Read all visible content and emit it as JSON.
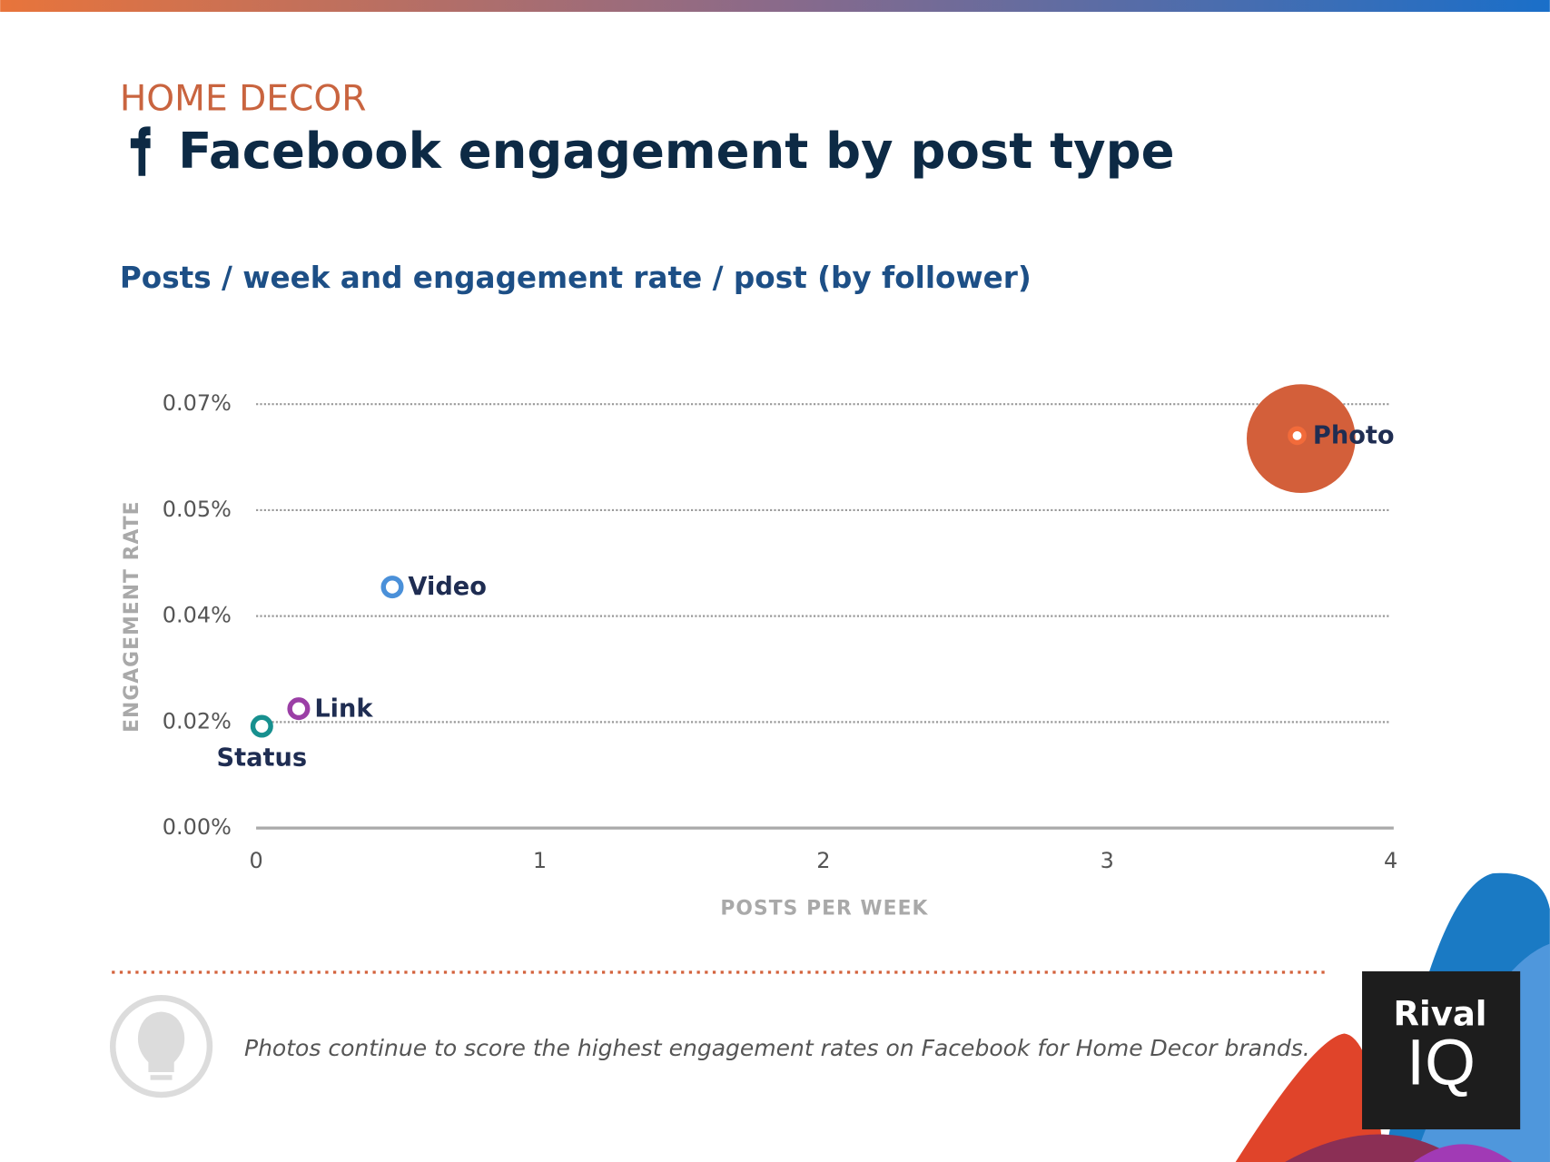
{
  "header": {
    "category": "HOME DECOR",
    "title": "Facebook engagement by post type"
  },
  "chart_data": {
    "type": "scatter",
    "subtitle": "Posts / week and engagement rate / post (by follower)",
    "x_label": "POSTS PER WEEK",
    "y_label": "ENGAGEMENT RATE",
    "xlim": [
      0,
      4
    ],
    "xticks": [
      0,
      1,
      2,
      3,
      4
    ],
    "ylim": [
      0,
      0.07
    ],
    "yticks": [
      {
        "value": 0,
        "label": "0.00%"
      },
      {
        "value": 0.0175,
        "label": "0.02%"
      },
      {
        "value": 0.035,
        "label": "0.04%"
      },
      {
        "value": 0.0525,
        "label": "0.05%"
      },
      {
        "value": 0.07,
        "label": "0.07%"
      }
    ],
    "grid": true,
    "highlight": "Photo",
    "highlight_color": "#d35f3a",
    "series": [
      {
        "name": "Photo",
        "color": "#f26b3a",
        "x": [
          3.67
        ],
        "values": [
          0.0648
        ]
      },
      {
        "name": "Video",
        "color": "#4a90d9",
        "x": [
          0.48
        ],
        "values": [
          0.0398
        ]
      },
      {
        "name": "Link",
        "color": "#9b3fa6",
        "x": [
          0.15
        ],
        "values": [
          0.0197
        ]
      },
      {
        "name": "Status",
        "color": "#17908f",
        "x": [
          0.02
        ],
        "values": [
          0.0168
        ]
      }
    ]
  },
  "footer": {
    "note": "Photos continue to score the highest engagement rates on Facebook for Home Decor brands.",
    "logo": [
      "Rival",
      "IQ"
    ]
  }
}
